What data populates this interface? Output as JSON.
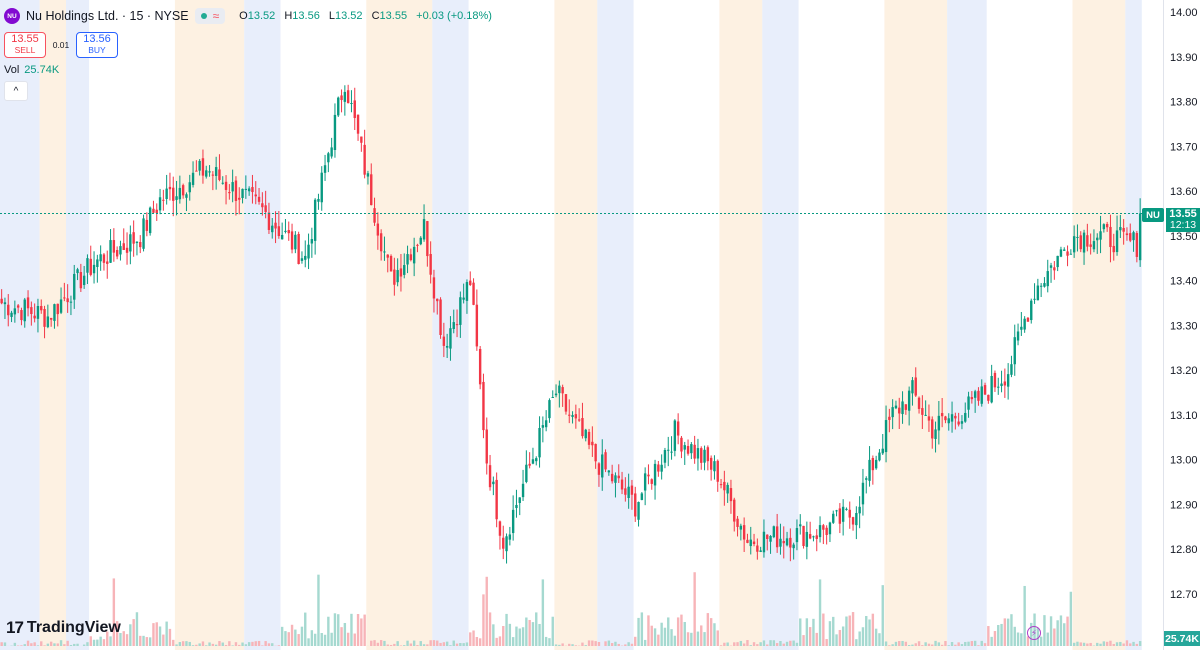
{
  "symbol": {
    "logo_text": "NU",
    "title": "Nu Holdings Ltd. · 15 · NYSE",
    "status_icon": "market-open-dot",
    "wave_icon": "≈"
  },
  "ohlc": {
    "o_label": "O",
    "o": "13.52",
    "h_label": "H",
    "h": "13.56",
    "l_label": "L",
    "l": "13.52",
    "c_label": "C",
    "c": "13.55",
    "change": "+0.03 (+0.18%)"
  },
  "trade": {
    "sell_price": "13.55",
    "sell_label": "SELL",
    "spread": "0.01",
    "buy_price": "13.56",
    "buy_label": "BUY"
  },
  "volume": {
    "label": "Vol",
    "value": "25.74K"
  },
  "collapse_icon": "^",
  "axis": {
    "price_ticks": [
      "14.00",
      "13.90",
      "13.80",
      "13.70",
      "13.60",
      "13.50",
      "13.40",
      "13.30",
      "13.20",
      "13.10",
      "13.00",
      "12.90",
      "12.80",
      "12.70"
    ],
    "current_symbol": "NU",
    "current_price": "13.55",
    "countdown": "12:13",
    "volume_tag": "25.74K"
  },
  "brand": {
    "mark": "17",
    "name": "TradingView"
  },
  "colors": {
    "up": "#089981",
    "down": "#f23645",
    "vol_up": "#a5d9d0",
    "vol_down": "#f7b4b8",
    "premarket_band": "#e8eefb",
    "afterhours_band": "#fdf1e2",
    "price_line": "#089981"
  },
  "chart_data": {
    "type": "candlestick",
    "interval": "15",
    "y_range": [
      12.65,
      14.02
    ],
    "current_price": 13.55,
    "sessions": [
      {
        "pre": 12,
        "reg": 0,
        "post": 8
      },
      {
        "pre": 7,
        "reg": 26,
        "post": 21
      },
      {
        "pre": 11,
        "reg": 26,
        "post": 20
      },
      {
        "pre": 11,
        "reg": 26,
        "post": 13
      },
      {
        "pre": 11,
        "reg": 26,
        "post": 13
      },
      {
        "pre": 11,
        "reg": 26,
        "post": 19
      },
      {
        "pre": 12,
        "reg": 26,
        "post": 16
      },
      {
        "pre": 5,
        "reg": 0,
        "post": 0
      }
    ],
    "anchors": [
      {
        "i": 0,
        "p": 13.35
      },
      {
        "i": 14,
        "p": 13.32
      },
      {
        "i": 28,
        "p": 13.44
      },
      {
        "i": 42,
        "p": 13.5
      },
      {
        "i": 48,
        "p": 13.58
      },
      {
        "i": 62,
        "p": 13.65
      },
      {
        "i": 80,
        "p": 13.55
      },
      {
        "i": 92,
        "p": 13.45
      },
      {
        "i": 100,
        "p": 13.72
      },
      {
        "i": 104,
        "p": 13.85
      },
      {
        "i": 111,
        "p": 13.62
      },
      {
        "i": 118,
        "p": 13.4
      },
      {
        "i": 128,
        "p": 13.52
      },
      {
        "i": 134,
        "p": 13.26
      },
      {
        "i": 142,
        "p": 13.4
      },
      {
        "i": 147,
        "p": 13.0
      },
      {
        "i": 152,
        "p": 12.82
      },
      {
        "i": 168,
        "p": 13.15
      },
      {
        "i": 180,
        "p": 13.0
      },
      {
        "i": 192,
        "p": 12.9
      },
      {
        "i": 204,
        "p": 13.06
      },
      {
        "i": 217,
        "p": 12.97
      },
      {
        "i": 226,
        "p": 12.82
      },
      {
        "i": 248,
        "p": 12.84
      },
      {
        "i": 258,
        "p": 12.88
      },
      {
        "i": 270,
        "p": 13.1
      },
      {
        "i": 276,
        "p": 13.15
      },
      {
        "i": 282,
        "p": 13.07
      },
      {
        "i": 294,
        "p": 13.12
      },
      {
        "i": 305,
        "p": 13.2
      },
      {
        "i": 313,
        "p": 13.38
      },
      {
        "i": 325,
        "p": 13.5
      },
      {
        "i": 333,
        "p": 13.5
      },
      {
        "i": 345,
        "p": 13.48
      },
      {
        "i": 352,
        "p": 13.6
      },
      {
        "i": 354,
        "p": 13.55
      }
    ]
  }
}
